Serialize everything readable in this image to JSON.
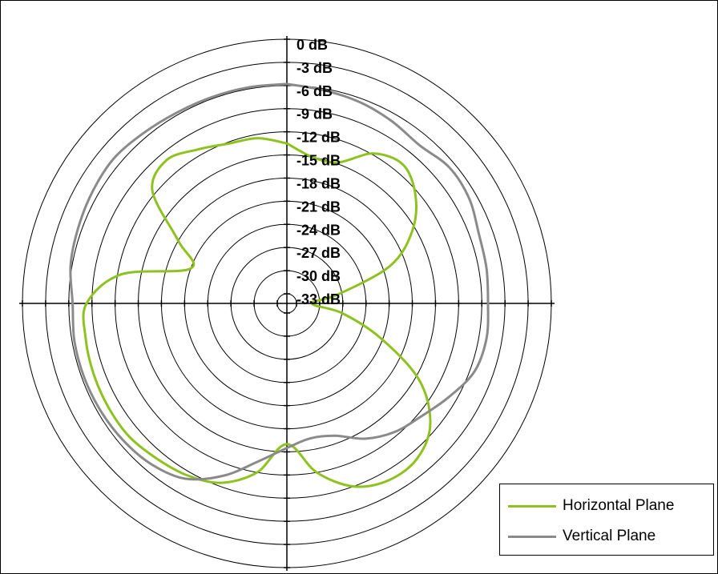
{
  "chart_data": {
    "type": "polar",
    "radial_unit": "dB",
    "radial_range": [
      -33,
      0
    ],
    "radial_tick_labels": [
      "0 dB",
      "-3 dB",
      "-6 dB",
      "-9 dB",
      "-12 dB",
      "-15 dB",
      "-18 dB",
      "-21 dB",
      "-24 dB",
      "-27 dB",
      "-30 dB",
      "-33 dB"
    ],
    "angle_step_deg": 30,
    "legend_position": "bottom-right",
    "series": [
      {
        "name": "Horizontal Plane",
        "color": "#8dc21f",
        "points": [
          [
            0,
            -13.5
          ],
          [
            10,
            -15.0
          ],
          [
            20,
            -14.8
          ],
          [
            30,
            -11.8
          ],
          [
            40,
            -10.8
          ],
          [
            50,
            -12.5
          ],
          [
            60,
            -15.5
          ],
          [
            70,
            -20.0
          ],
          [
            80,
            -27.5
          ],
          [
            90,
            -31.0
          ],
          [
            100,
            -27.0
          ],
          [
            110,
            -21.5
          ],
          [
            120,
            -14.5
          ],
          [
            130,
            -10.0
          ],
          [
            140,
            -8.0
          ],
          [
            150,
            -7.8
          ],
          [
            160,
            -9.0
          ],
          [
            170,
            -12.0
          ],
          [
            180,
            -16.0
          ],
          [
            190,
            -12.0
          ],
          [
            200,
            -9.5
          ],
          [
            210,
            -8.5
          ],
          [
            220,
            -8.0
          ],
          [
            230,
            -7.5
          ],
          [
            240,
            -7.5
          ],
          [
            250,
            -7.6
          ],
          [
            260,
            -7.8
          ],
          [
            270,
            -8.3
          ],
          [
            280,
            -12.5
          ],
          [
            290,
            -21.0
          ],
          [
            300,
            -18.0
          ],
          [
            310,
            -11.5
          ],
          [
            320,
            -10.0
          ],
          [
            330,
            -11.2
          ],
          [
            340,
            -12.2
          ],
          [
            350,
            -12.5
          ],
          [
            360,
            -13.5
          ]
        ]
      },
      {
        "name": "Vertical Plane",
        "color": "#8a8a8a",
        "points": [
          [
            0,
            -5.8
          ],
          [
            10,
            -6.2
          ],
          [
            20,
            -6.5
          ],
          [
            30,
            -7.0
          ],
          [
            40,
            -7.5
          ],
          [
            50,
            -6.8
          ],
          [
            60,
            -7.0
          ],
          [
            70,
            -7.8
          ],
          [
            80,
            -8.0
          ],
          [
            90,
            -8.2
          ],
          [
            100,
            -8.0
          ],
          [
            110,
            -8.4
          ],
          [
            120,
            -10.0
          ],
          [
            130,
            -11.5
          ],
          [
            140,
            -12.5
          ],
          [
            150,
            -14.0
          ],
          [
            160,
            -16.0
          ],
          [
            170,
            -16.5
          ],
          [
            180,
            -15.5
          ],
          [
            190,
            -13.5
          ],
          [
            200,
            -10.5
          ],
          [
            210,
            -8.0
          ],
          [
            220,
            -7.0
          ],
          [
            230,
            -6.6
          ],
          [
            240,
            -6.4
          ],
          [
            250,
            -6.3
          ],
          [
            260,
            -6.3
          ],
          [
            270,
            -6.5
          ],
          [
            280,
            -5.8
          ],
          [
            290,
            -5.5
          ],
          [
            300,
            -5.2
          ],
          [
            310,
            -5.0
          ],
          [
            320,
            -5.4
          ],
          [
            330,
            -5.7
          ],
          [
            340,
            -5.8
          ],
          [
            350,
            -5.8
          ],
          [
            360,
            -5.8
          ]
        ]
      }
    ]
  },
  "legend": {
    "items": [
      {
        "label": "Horizontal Plane",
        "color": "#8dc21f"
      },
      {
        "label": "Vertical Plane",
        "color": "#8a8a8a"
      }
    ]
  }
}
